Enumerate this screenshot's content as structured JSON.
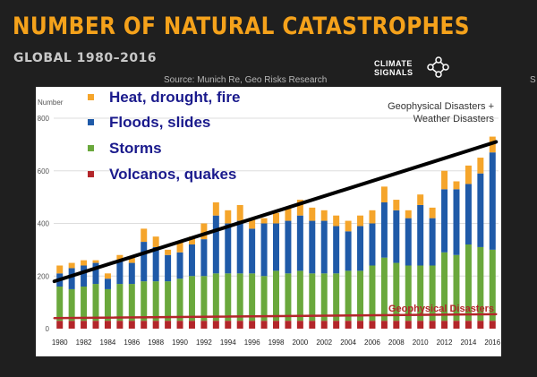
{
  "header": {
    "title": "NUMBER OF NATURAL CATASTROPHES",
    "subtitle": "GLOBAL 1980–2016",
    "source": "Source: Munich Re, Geo Risks Research",
    "brand_line1": "CLIMATE",
    "brand_line2": "SIGNALS",
    "edge_fragment": "S"
  },
  "colors": {
    "heat": "#f5a52b",
    "floods": "#1f5aa8",
    "storms": "#6aa83c",
    "volcanos": "#b3262a",
    "trend": "#000000",
    "title": "#f5a21b",
    "legend_text": "#1a1a8c"
  },
  "chart_data": {
    "type": "bar",
    "stacked": true,
    "ylabel": "Number",
    "ylim": [
      0,
      800
    ],
    "yticks": [
      "0",
      "200",
      "400",
      "600",
      "800"
    ],
    "xticks": [
      "1980",
      "1982",
      "1984",
      "1986",
      "1988",
      "1990",
      "1992",
      "1994",
      "1996",
      "1998",
      "2000",
      "2002",
      "2004",
      "2006",
      "2008",
      "2010",
      "2012",
      "2014",
      "2016"
    ],
    "categories": [
      "1980",
      "1981",
      "1982",
      "1983",
      "1984",
      "1985",
      "1986",
      "1987",
      "1988",
      "1989",
      "1990",
      "1991",
      "1992",
      "1993",
      "1994",
      "1995",
      "1996",
      "1997",
      "1998",
      "1999",
      "2000",
      "2001",
      "2002",
      "2003",
      "2004",
      "2005",
      "2006",
      "2007",
      "2008",
      "2009",
      "2010",
      "2011",
      "2012",
      "2013",
      "2014",
      "2015",
      "2016"
    ],
    "series": [
      {
        "name": "Volcanos, quakes",
        "values": [
          30,
          30,
          30,
          30,
          30,
          30,
          30,
          30,
          30,
          30,
          30,
          30,
          30,
          30,
          30,
          30,
          30,
          30,
          30,
          30,
          30,
          30,
          30,
          30,
          30,
          30,
          30,
          30,
          30,
          30,
          30,
          30,
          30,
          30,
          30,
          30,
          30
        ]
      },
      {
        "name": "Storms",
        "values": [
          130,
          120,
          130,
          140,
          120,
          140,
          140,
          150,
          150,
          150,
          160,
          170,
          170,
          180,
          180,
          180,
          180,
          170,
          190,
          180,
          190,
          180,
          180,
          180,
          190,
          190,
          210,
          240,
          220,
          210,
          210,
          210,
          260,
          250,
          290,
          280,
          270
        ]
      },
      {
        "name": "Floods, slides",
        "values": [
          50,
          80,
          80,
          80,
          40,
          90,
          80,
          150,
          130,
          100,
          100,
          120,
          140,
          220,
          190,
          200,
          170,
          200,
          180,
          200,
          210,
          200,
          200,
          180,
          150,
          170,
          160,
          210,
          200,
          180,
          230,
          180,
          240,
          250,
          230,
          280,
          370
        ]
      },
      {
        "name": "Heat, drought, fire",
        "values": [
          30,
          20,
          20,
          10,
          20,
          20,
          20,
          50,
          40,
          20,
          40,
          30,
          60,
          50,
          50,
          60,
          40,
          20,
          40,
          50,
          60,
          50,
          40,
          40,
          40,
          40,
          50,
          60,
          40,
          30,
          40,
          40,
          70,
          30,
          70,
          60,
          60
        ]
      }
    ],
    "legend": [
      {
        "key": "heat",
        "label": "Heat, drought, fire"
      },
      {
        "key": "floods",
        "label": "Floods, slides"
      },
      {
        "key": "storms",
        "label": "Storms"
      },
      {
        "key": "volcanos",
        "label": "Volcanos, quakes"
      }
    ],
    "annotations": {
      "top_right_line1": "Geophysical Disasters +",
      "top_right_line2": "Weather Disasters",
      "bottom_right": "Geophysical Disasters"
    },
    "trendlines": [
      {
        "name": "total",
        "from": [
          "1980",
          180
        ],
        "to": [
          "2016",
          710
        ]
      },
      {
        "name": "geophysical",
        "from": [
          "1980",
          40
        ],
        "to": [
          "2016",
          55
        ]
      }
    ],
    "grid": true
  }
}
